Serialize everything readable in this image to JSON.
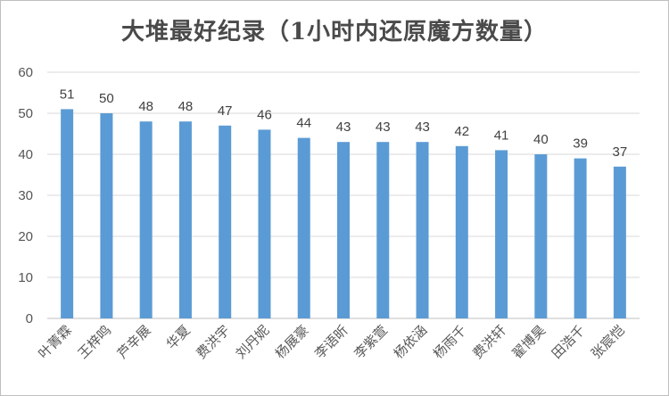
{
  "chart_data": {
    "type": "bar",
    "title": "大堆最好纪录（1小时内还原魔方数量）",
    "xlabel": "",
    "ylabel": "",
    "ylim": [
      0,
      60
    ],
    "yticks": [
      0,
      10,
      20,
      30,
      40,
      50,
      60
    ],
    "grid": true,
    "legend": "none",
    "bar_color": "#5b9bd5",
    "data_labels": true,
    "categories": [
      "叶菁霖",
      "王梓鸣",
      "芦辛展",
      "华夏",
      "费洪宇",
      "刘丹妮",
      "杨展豪",
      "李语昕",
      "李紫萱",
      "杨依涵",
      "杨雨千",
      "费洪轩",
      "翟博昊",
      "田浩千",
      "张宸恺"
    ],
    "values": [
      51,
      50,
      48,
      48,
      47,
      46,
      44,
      43,
      43,
      43,
      42,
      41,
      40,
      39,
      37
    ]
  }
}
